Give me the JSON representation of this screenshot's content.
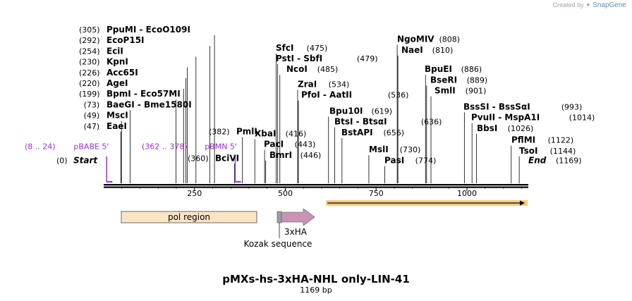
{
  "credit": {
    "prefix": "Created by",
    "brand": "SnapGene"
  },
  "map": {
    "title": "pMXs-hs-3xHA-NHL only-LIN-41",
    "length_label": "1169 bp",
    "total_bp": 1169
  },
  "ruler": {
    "ticks": [
      {
        "bp": 250,
        "label": "250"
      },
      {
        "bp": 500,
        "label": "500"
      },
      {
        "bp": 750,
        "label": "750"
      },
      {
        "bp": 1000,
        "label": "1000"
      }
    ]
  },
  "enzymes": [
    {
      "pos": "(305)",
      "bp": 305,
      "names": [
        "PpuMI",
        "EcoO109I"
      ]
    },
    {
      "pos": "(292)",
      "bp": 292,
      "names": [
        "EcoP15I"
      ]
    },
    {
      "pos": "(254)",
      "bp": 254,
      "names": [
        "EciI"
      ]
    },
    {
      "pos": "(230)",
      "bp": 230,
      "names": [
        "KpnI"
      ]
    },
    {
      "pos": "(226)",
      "bp": 226,
      "names": [
        "Acc65I"
      ]
    },
    {
      "pos": "(220)",
      "bp": 220,
      "names": [
        "AgeI"
      ]
    },
    {
      "pos": "(199)",
      "bp": 199,
      "names": [
        "BpmI",
        "Eco57MI"
      ]
    },
    {
      "pos": "(73)",
      "bp": 73,
      "names": [
        "BaeGI",
        "Bme1580I"
      ]
    },
    {
      "pos": "(49)",
      "bp": 49,
      "names": [
        "MscI"
      ]
    },
    {
      "pos": "(47)",
      "bp": 47,
      "names": [
        "EaeI"
      ]
    },
    {
      "pos": "(382)",
      "bp": 382,
      "names": [
        "PmlI"
      ]
    },
    {
      "pos": "(360)",
      "bp": 360,
      "names": [
        "BciVI"
      ]
    },
    {
      "pos": "(475)",
      "bp": 475,
      "names": [
        "SfcI"
      ]
    },
    {
      "pos": "(479)",
      "bp": 479,
      "names": [
        "PstI",
        "SbfI"
      ]
    },
    {
      "pos": "(485)",
      "bp": 485,
      "names": [
        "NcoI"
      ]
    },
    {
      "pos": "(534)",
      "bp": 534,
      "names": [
        "ZraI"
      ]
    },
    {
      "pos": "(536)",
      "bp": 536,
      "names": [
        "PfoI",
        "AatII"
      ]
    },
    {
      "pos": "(416)",
      "bp": 416,
      "names": [
        "XbaI"
      ]
    },
    {
      "pos": "(443)",
      "bp": 443,
      "names": [
        "PacI"
      ]
    },
    {
      "pos": "(446)",
      "bp": 446,
      "names": [
        "BmrI"
      ]
    },
    {
      "pos": "(619)",
      "bp": 619,
      "names": [
        "Bpu10I"
      ]
    },
    {
      "pos": "(636)",
      "bp": 636,
      "names": [
        "BtsI",
        "BtsαI"
      ]
    },
    {
      "pos": "(656)",
      "bp": 656,
      "names": [
        "BstAPI"
      ]
    },
    {
      "pos": "(730)",
      "bp": 730,
      "names": [
        "MslI"
      ]
    },
    {
      "pos": "(774)",
      "bp": 774,
      "names": [
        "PasI"
      ]
    },
    {
      "pos": "(808)",
      "bp": 808,
      "names": [
        "NgoMIV"
      ]
    },
    {
      "pos": "(810)",
      "bp": 810,
      "names": [
        "NaeI"
      ]
    },
    {
      "pos": "(886)",
      "bp": 886,
      "names": [
        "BpuEI"
      ]
    },
    {
      "pos": "(889)",
      "bp": 889,
      "names": [
        "BseRI"
      ]
    },
    {
      "pos": "(901)",
      "bp": 901,
      "names": [
        "SmlI"
      ]
    },
    {
      "pos": "(993)",
      "bp": 993,
      "names": [
        "BssSI",
        "BssSαI"
      ]
    },
    {
      "pos": "(1014)",
      "bp": 1014,
      "names": [
        "PvuII",
        "MspA1I"
      ]
    },
    {
      "pos": "(1026)",
      "bp": 1026,
      "names": [
        "BbsI"
      ]
    },
    {
      "pos": "(1122)",
      "bp": 1122,
      "names": [
        "PflMI"
      ]
    },
    {
      "pos": "(1144)",
      "bp": 1144,
      "names": [
        "TsoI"
      ]
    }
  ],
  "markers": [
    {
      "pos": "(0)",
      "bp": 0,
      "name": "Start"
    },
    {
      "pos": "(1169)",
      "bp": 1169,
      "name": "End"
    }
  ],
  "primers": [
    {
      "range": "(8 .. 24)",
      "name": "pBABE 5'",
      "start": 8,
      "end": 24,
      "color": "#9b30d0"
    },
    {
      "range": "(362 .. 378)",
      "name": "pBMN 5'",
      "start": 362,
      "end": 378,
      "color": "#9b30d0"
    }
  ],
  "features": [
    {
      "name": "pol region",
      "start": 60,
      "end": 520,
      "color": "#fde4c4",
      "stroke": "#444444"
    },
    {
      "name": "Kozak sequence",
      "start": 602,
      "end": 611,
      "color": "#9e9e9e"
    },
    {
      "name": "3xHA",
      "start": 611,
      "end": 702,
      "color": "#c893b4"
    }
  ],
  "orf": {
    "start": 612,
    "end": 1169,
    "color": "#f3c36a"
  }
}
